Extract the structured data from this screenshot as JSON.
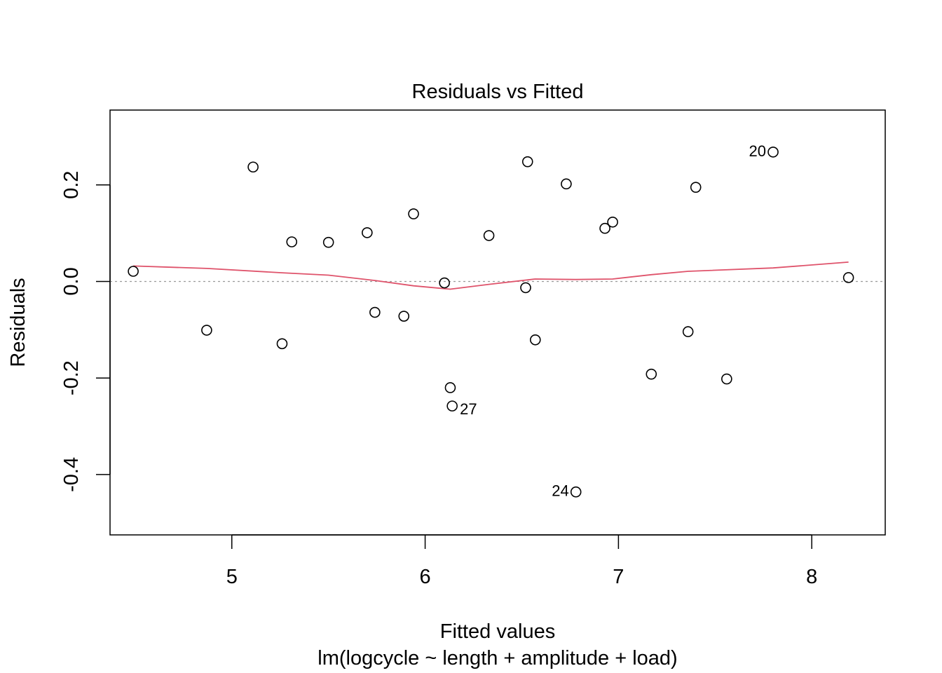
{
  "chart_data": {
    "type": "scatter",
    "title": "Residuals vs Fitted",
    "xlabel": "Fitted values",
    "subtitle": "lm(logcycle ~ length + amplitude + load)",
    "ylabel": "Residuals",
    "xlim": [
      4.37,
      8.38
    ],
    "ylim": [
      -0.525,
      0.355
    ],
    "x_ticks": [
      5,
      6,
      7,
      8
    ],
    "x_tick_labels": [
      "5",
      "6",
      "7",
      "8"
    ],
    "y_ticks": [
      -0.4,
      -0.2,
      0.0,
      0.2
    ],
    "y_tick_labels": [
      "-0.4",
      "-0.2",
      "0.0",
      "0.2"
    ],
    "reference_line": {
      "y": 0,
      "style": "dotted",
      "color": "#999999"
    },
    "points": [
      {
        "x": 4.49,
        "y": 0.021
      },
      {
        "x": 4.87,
        "y": -0.101
      },
      {
        "x": 5.11,
        "y": 0.237
      },
      {
        "x": 5.26,
        "y": -0.129
      },
      {
        "x": 5.31,
        "y": 0.082
      },
      {
        "x": 5.5,
        "y": 0.081
      },
      {
        "x": 5.7,
        "y": 0.101
      },
      {
        "x": 5.74,
        "y": -0.064
      },
      {
        "x": 5.89,
        "y": -0.072
      },
      {
        "x": 5.94,
        "y": 0.14
      },
      {
        "x": 6.1,
        "y": -0.003
      },
      {
        "x": 6.13,
        "y": -0.22
      },
      {
        "x": 6.14,
        "y": -0.258,
        "label": "27",
        "label_side": "right"
      },
      {
        "x": 6.33,
        "y": 0.095
      },
      {
        "x": 6.52,
        "y": -0.013
      },
      {
        "x": 6.53,
        "y": 0.248
      },
      {
        "x": 6.57,
        "y": -0.121
      },
      {
        "x": 6.73,
        "y": 0.202
      },
      {
        "x": 6.78,
        "y": -0.436,
        "label": "24",
        "label_side": "left"
      },
      {
        "x": 6.93,
        "y": 0.11
      },
      {
        "x": 6.97,
        "y": 0.123
      },
      {
        "x": 7.17,
        "y": -0.192
      },
      {
        "x": 7.36,
        "y": -0.104
      },
      {
        "x": 7.4,
        "y": 0.195
      },
      {
        "x": 7.56,
        "y": -0.202
      },
      {
        "x": 7.8,
        "y": 0.268,
        "label": "20",
        "label_side": "left"
      },
      {
        "x": 8.19,
        "y": 0.008
      }
    ],
    "smooth_line": {
      "color": "#DF536B",
      "points": [
        {
          "x": 4.49,
          "y": 0.032
        },
        {
          "x": 4.87,
          "y": 0.027
        },
        {
          "x": 5.26,
          "y": 0.018
        },
        {
          "x": 5.5,
          "y": 0.013
        },
        {
          "x": 5.74,
          "y": 0.002
        },
        {
          "x": 5.94,
          "y": -0.009
        },
        {
          "x": 6.13,
          "y": -0.016
        },
        {
          "x": 6.33,
          "y": -0.006
        },
        {
          "x": 6.57,
          "y": 0.005
        },
        {
          "x": 6.78,
          "y": 0.004
        },
        {
          "x": 6.97,
          "y": 0.005
        },
        {
          "x": 7.17,
          "y": 0.014
        },
        {
          "x": 7.36,
          "y": 0.021
        },
        {
          "x": 7.8,
          "y": 0.028
        },
        {
          "x": 8.19,
          "y": 0.04
        }
      ]
    },
    "grid": false,
    "legend": "none"
  }
}
